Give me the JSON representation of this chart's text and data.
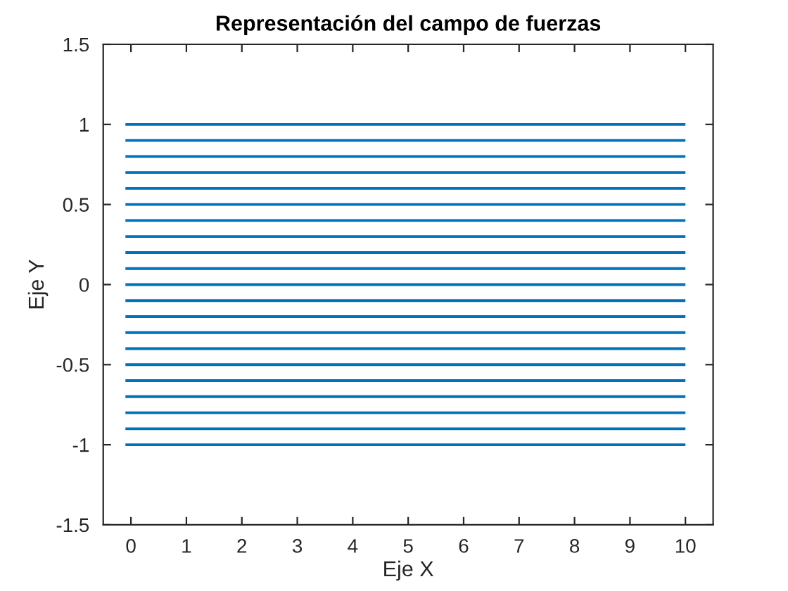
{
  "chart_data": {
    "type": "line",
    "title": "Representación del campo de fuerzas",
    "xlabel": "Eje X",
    "ylabel": "Eje Y",
    "x": [
      -0.1,
      10
    ],
    "series": [
      {
        "color": "#0072bd",
        "values": [
          1,
          1
        ]
      },
      {
        "color": "#0072bd",
        "values": [
          0.9,
          0.9
        ]
      },
      {
        "color": "#0072bd",
        "values": [
          0.8,
          0.8
        ]
      },
      {
        "color": "#0072bd",
        "values": [
          0.7,
          0.7
        ]
      },
      {
        "color": "#0072bd",
        "values": [
          0.6,
          0.6
        ]
      },
      {
        "color": "#0072bd",
        "values": [
          0.5,
          0.5
        ]
      },
      {
        "color": "#0072bd",
        "values": [
          0.4,
          0.4
        ]
      },
      {
        "color": "#0072bd",
        "values": [
          0.3,
          0.3
        ]
      },
      {
        "color": "#0072bd",
        "values": [
          0.2,
          0.2
        ]
      },
      {
        "color": "#0072bd",
        "values": [
          0.1,
          0.1
        ]
      },
      {
        "color": "#0072bd",
        "values": [
          0,
          0
        ]
      },
      {
        "color": "#0072bd",
        "values": [
          -0.1,
          -0.1
        ]
      },
      {
        "color": "#0072bd",
        "values": [
          -0.2,
          -0.2
        ]
      },
      {
        "color": "#0072bd",
        "values": [
          -0.3,
          -0.3
        ]
      },
      {
        "color": "#0072bd",
        "values": [
          -0.4,
          -0.4
        ]
      },
      {
        "color": "#0072bd",
        "values": [
          -0.5,
          -0.5
        ]
      },
      {
        "color": "#0072bd",
        "values": [
          -0.6,
          -0.6
        ]
      },
      {
        "color": "#0072bd",
        "values": [
          -0.7,
          -0.7
        ]
      },
      {
        "color": "#0072bd",
        "values": [
          -0.8,
          -0.8
        ]
      },
      {
        "color": "#0072bd",
        "values": [
          -0.9,
          -0.9
        ]
      },
      {
        "color": "#0072bd",
        "values": [
          -1,
          -1
        ]
      }
    ],
    "xlim": [
      -0.5,
      10.5
    ],
    "xticks": [
      0,
      1,
      2,
      3,
      4,
      5,
      6,
      7,
      8,
      9,
      10
    ],
    "ylim": [
      -1.5,
      1.5
    ],
    "yticks": [
      -1.5,
      -1,
      -0.5,
      0,
      0.5,
      1,
      1.5
    ],
    "line_style": "solid"
  }
}
